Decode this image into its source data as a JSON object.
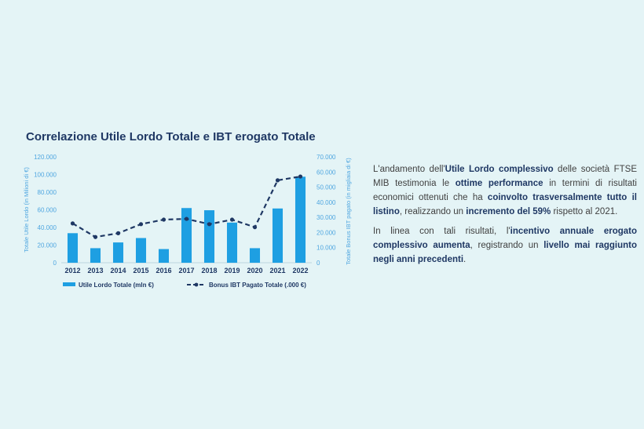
{
  "chart_data": {
    "type": "bar",
    "title": "Correlazione Utile Lordo Totale e IBT erogato Totale",
    "categories": [
      "2012",
      "2013",
      "2014",
      "2015",
      "2016",
      "2017",
      "2018",
      "2019",
      "2020",
      "2021",
      "2022"
    ],
    "series": [
      {
        "name": "Utile Lordo Totale (mln €)",
        "type": "bar",
        "axis": "left",
        "values": [
          33500,
          16500,
          23000,
          28000,
          15500,
          62000,
          59500,
          45500,
          16500,
          61500,
          97500
        ]
      },
      {
        "name": "Bonus IBT Pagato Totale (.000 €)",
        "type": "line",
        "axis": "right",
        "values": [
          26000,
          17000,
          19500,
          25500,
          28500,
          29000,
          25500,
          28500,
          23500,
          54500,
          57000
        ]
      }
    ],
    "ylabel": "Totale Utile Lordo (in Milioni di €)",
    "y2label": "Totale Bonus IBT pagato (in migliaia di €)",
    "ylim": [
      0,
      120000
    ],
    "y2lim": [
      0,
      70000
    ],
    "yticks": [
      "0",
      "20.000",
      "40.000",
      "60.000",
      "80.000",
      "100.000",
      "120.000"
    ],
    "y2ticks": [
      "0",
      "10.000",
      "20.000",
      "30.000",
      "40.000",
      "50.000",
      "60.000",
      "70.000"
    ],
    "legend_position": "bottom",
    "colors": {
      "bar": "#1e9fe2",
      "line": "#1f3864"
    }
  },
  "text": {
    "p1": [
      {
        "t": "L'andamento dell'",
        "b": false
      },
      {
        "t": "Utile Lordo complessivo",
        "b": true
      },
      {
        "t": " delle società FTSE MIB testimonia le ",
        "b": false
      },
      {
        "t": "ottime performance",
        "b": true
      },
      {
        "t": " in termini di risultati economici ottenuti che ha ",
        "b": false
      },
      {
        "t": "coinvolto trasversalmente tutto il listino",
        "b": true
      },
      {
        "t": ", realizzando un ",
        "b": false
      },
      {
        "t": "incremento del 59%",
        "b": true
      },
      {
        "t": " rispetto al 2021.",
        "b": false
      }
    ],
    "p2": [
      {
        "t": "In linea con tali risultati, l'",
        "b": false
      },
      {
        "t": "incentivo annuale erogato complessivo aumenta",
        "b": true
      },
      {
        "t": ", registrando un ",
        "b": false
      },
      {
        "t": "livello mai raggiunto negli anni precedenti",
        "b": true
      },
      {
        "t": ".",
        "b": false
      }
    ]
  }
}
